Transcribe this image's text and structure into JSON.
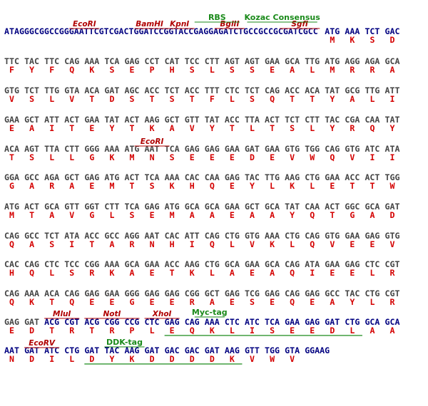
{
  "rows": [
    {
      "prefix": "ATAGGGCGGCCGGGAATTCGTCGACTGGATCCGGTACCGAGGAGATCTGCCGCCGCGATCGCC",
      "codons": [
        "ATG",
        "AAA",
        "TCT",
        "GAC"
      ],
      "aa": [
        "M",
        "K",
        "S",
        "D"
      ]
    },
    {
      "codons": [
        "TTC",
        "TAC",
        "TTC",
        "CAG",
        "AAA",
        "TCA",
        "GAG",
        "CCT",
        "CAT",
        "TCC",
        "CTT",
        "AGT",
        "AGT",
        "GAA",
        "GCA",
        "TTG",
        "ATG",
        "AGG",
        "AGA",
        "GCA"
      ],
      "aa": [
        "F",
        "Y",
        "F",
        "Q",
        "K",
        "S",
        "E",
        "P",
        "H",
        "S",
        "L",
        "S",
        "S",
        "E",
        "A",
        "L",
        "M",
        "R",
        "R",
        "A"
      ]
    },
    {
      "codons": [
        "GTG",
        "TCT",
        "TTG",
        "GTA",
        "ACA",
        "GAT",
        "AGC",
        "ACC",
        "TCT",
        "ACC",
        "TTT",
        "CTC",
        "TCT",
        "CAG",
        "ACC",
        "ACA",
        "TAT",
        "GCG",
        "TTG",
        "ATT"
      ],
      "aa": [
        "V",
        "S",
        "L",
        "V",
        "T",
        "D",
        "S",
        "T",
        "S",
        "T",
        "F",
        "L",
        "S",
        "Q",
        "T",
        "T",
        "Y",
        "A",
        "L",
        "I"
      ]
    },
    {
      "codons": [
        "GAA",
        "GCT",
        "ATT",
        "ACT",
        "GAA",
        "TAT",
        "ACT",
        "AAG",
        "GCT",
        "GTT",
        "TAT",
        "ACC",
        "TTA",
        "ACT",
        "TCT",
        "CTT",
        "TAC",
        "CGA",
        "CAA",
        "TAT"
      ],
      "aa": [
        "E",
        "A",
        "I",
        "T",
        "E",
        "Y",
        "T",
        "K",
        "A",
        "V",
        "Y",
        "T",
        "L",
        "T",
        "S",
        "L",
        "Y",
        "R",
        "Q",
        "Y"
      ]
    },
    {
      "codons": [
        "ACA",
        "AGT",
        "TTA",
        "CTT",
        "GGG",
        "AAA",
        "ATG",
        "AAT",
        "TCA",
        "GAG",
        "GAG",
        "GAA",
        "GAT",
        "GAA",
        "GTG",
        "TGG",
        "CAG",
        "GTG",
        "ATC",
        "ATA"
      ],
      "aa": [
        "T",
        "S",
        "L",
        "L",
        "G",
        "K",
        "M",
        "N",
        "S",
        "E",
        "E",
        "E",
        "D",
        "E",
        "V",
        "W",
        "Q",
        "V",
        "I",
        "I"
      ]
    },
    {
      "codons": [
        "GGA",
        "GCC",
        "AGA",
        "GCT",
        "GAG",
        "ATG",
        "ACT",
        "TCA",
        "AAA",
        "CAC",
        "CAA",
        "GAG",
        "TAC",
        "TTG",
        "AAG",
        "CTG",
        "GAA",
        "ACC",
        "ACT",
        "TGG"
      ],
      "aa": [
        "G",
        "A",
        "R",
        "A",
        "E",
        "M",
        "T",
        "S",
        "K",
        "H",
        "Q",
        "E",
        "Y",
        "L",
        "K",
        "L",
        "E",
        "T",
        "T",
        "W"
      ]
    },
    {
      "codons": [
        "ATG",
        "ACT",
        "GCA",
        "GTT",
        "GGT",
        "CTT",
        "TCA",
        "GAG",
        "ATG",
        "GCA",
        "GCA",
        "GAA",
        "GCT",
        "GCA",
        "TAT",
        "CAA",
        "ACT",
        "GGC",
        "GCA",
        "GAT"
      ],
      "aa": [
        "M",
        "T",
        "A",
        "V",
        "G",
        "L",
        "S",
        "E",
        "M",
        "A",
        "A",
        "E",
        "A",
        "A",
        "Y",
        "Q",
        "T",
        "G",
        "A",
        "D"
      ]
    },
    {
      "codons": [
        "CAG",
        "GCC",
        "TCT",
        "ATA",
        "ACC",
        "GCC",
        "AGG",
        "AAT",
        "CAC",
        "ATT",
        "CAG",
        "CTG",
        "GTG",
        "AAA",
        "CTG",
        "CAG",
        "GTG",
        "GAA",
        "GAG",
        "GTG"
      ],
      "aa": [
        "Q",
        "A",
        "S",
        "I",
        "T",
        "A",
        "R",
        "N",
        "H",
        "I",
        "Q",
        "L",
        "V",
        "K",
        "L",
        "Q",
        "V",
        "E",
        "E",
        "V"
      ]
    },
    {
      "codons": [
        "CAC",
        "CAG",
        "CTC",
        "TCC",
        "CGG",
        "AAA",
        "GCA",
        "GAA",
        "ACC",
        "AAG",
        "CTG",
        "GCA",
        "GAA",
        "GCA",
        "CAG",
        "ATA",
        "GAA",
        "GAG",
        "CTC",
        "CGT"
      ],
      "aa": [
        "H",
        "Q",
        "L",
        "S",
        "R",
        "K",
        "A",
        "E",
        "T",
        "K",
        "L",
        "A",
        "E",
        "A",
        "Q",
        "I",
        "E",
        "E",
        "L",
        "R"
      ]
    },
    {
      "codons": [
        "CAG",
        "AAA",
        "ACA",
        "CAG",
        "GAG",
        "GAA",
        "GGG",
        "GAG",
        "GAG",
        "CGG",
        "GCT",
        "GAG",
        "TCG",
        "GAG",
        "CAG",
        "GAG",
        "GCC",
        "TAC",
        "CTG",
        "CGT"
      ],
      "aa": [
        "Q",
        "K",
        "T",
        "Q",
        "E",
        "E",
        "G",
        "E",
        "E",
        "R",
        "A",
        "E",
        "S",
        "E",
        "Q",
        "E",
        "A",
        "Y",
        "L",
        "R"
      ]
    },
    {
      "codons": [
        "GAG",
        "GAT",
        "ACG",
        "CGT",
        "ACG",
        "CGG",
        "CCG",
        "CTC",
        "GAG",
        "CAG",
        "AAA",
        "CTC",
        "ATC",
        "TCA",
        "GAA",
        "GAG",
        "GAT",
        "CTG",
        "GCA",
        "GCA"
      ],
      "aa": [
        "E",
        "D",
        "T",
        "R",
        "T",
        "R",
        "P",
        "L",
        "E",
        "Q",
        "K",
        "L",
        "I",
        "S",
        "E",
        "E",
        "D",
        "L",
        "A",
        "A"
      ]
    },
    {
      "codons": [
        "AAT",
        "GAT",
        "ATC",
        "CTG",
        "GAT",
        "TAC",
        "AAG",
        "GAT",
        "GAC",
        "GAC",
        "GAT",
        "AAG",
        "GTT",
        "TGG",
        "GTA"
      ],
      "aa": [
        "N",
        "D",
        "I",
        "L",
        "D",
        "Y",
        "K",
        "D",
        "D",
        "D",
        "D",
        "K",
        "V",
        "W",
        "V"
      ],
      "suffix": "GGAAG"
    }
  ],
  "annotations": [
    {
      "label": "EcoRI"
    },
    {
      "label": "BamHI"
    },
    {
      "label": "KpnI"
    },
    {
      "label": "BglII"
    },
    {
      "label": "SgfI"
    },
    {
      "label": "RBS"
    },
    {
      "label": "Kozac Consensus"
    },
    {
      "label": "EcoRI"
    },
    {
      "label": "MluI"
    },
    {
      "label": "NotI"
    },
    {
      "label": "XhoI"
    },
    {
      "label": "Myc-tag"
    },
    {
      "label": "EcoRV"
    },
    {
      "label": "DDK-tag"
    }
  ]
}
